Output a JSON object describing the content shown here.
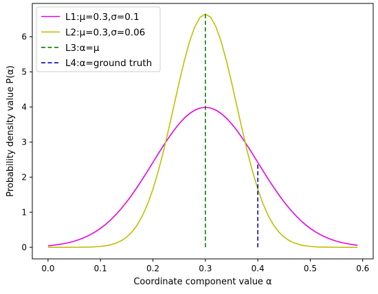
{
  "chart_data": {
    "type": "line",
    "title": "",
    "xlabel": "Coordinate component value α",
    "ylabel": "Probability density value P(α)",
    "xlim": [
      -0.03,
      0.62
    ],
    "ylim": [
      -0.33,
      6.95
    ],
    "xticks": [
      0.0,
      0.1,
      0.2,
      0.3,
      0.4,
      0.5,
      0.6
    ],
    "xtick_labels": [
      "0.0",
      "0.1",
      "0.2",
      "0.3",
      "0.4",
      "0.5",
      "0.6"
    ],
    "yticks": [
      0,
      1,
      2,
      3,
      4,
      5,
      6
    ],
    "ytick_labels": [
      "0",
      "1",
      "2",
      "3",
      "4",
      "5",
      "6"
    ],
    "grid": false,
    "legend_position": "top-left",
    "curve_x_range": [
      0.0,
      0.59
    ],
    "series": [
      {
        "name": "L1:μ=0.3,σ=0.1",
        "kind": "gaussian",
        "mu": 0.3,
        "sigma": 0.1,
        "color": "#e600e6",
        "dash": "solid"
      },
      {
        "name": "L2:μ=0.3,σ=0.06",
        "kind": "gaussian",
        "mu": 0.3,
        "sigma": 0.06,
        "color": "#bfbf00",
        "dash": "solid"
      },
      {
        "name": "L3:α=μ",
        "kind": "vline",
        "x": 0.3,
        "y_top": 6.65,
        "color": "#008000",
        "dash": "dashed"
      },
      {
        "name": "L4:α=ground truth",
        "kind": "vline",
        "x": 0.4,
        "y_top": 2.42,
        "color": "#0000cc",
        "dash": "dashed"
      }
    ]
  }
}
